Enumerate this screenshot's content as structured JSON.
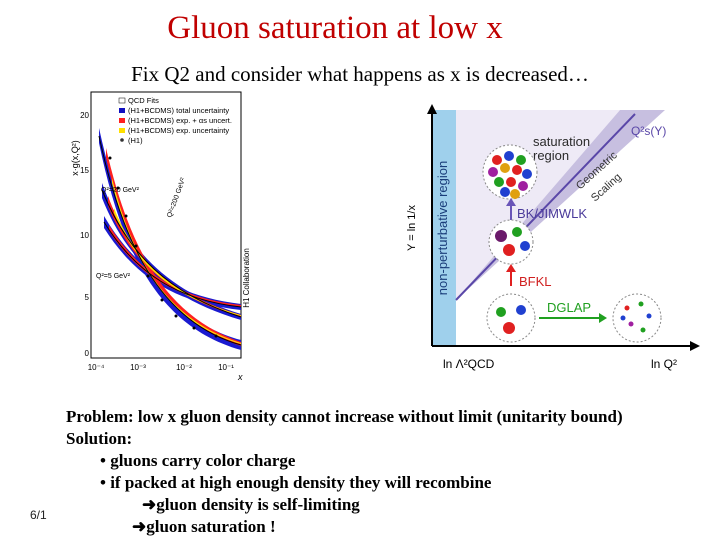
{
  "slide": {
    "title": "Gluon saturation at low x",
    "subtitle": "Fix Q2 and consider what happens as x is decreased…",
    "number": "6/1"
  },
  "left_plot": {
    "ylabel": "x·g(x,Q²)",
    "xlabel": "x",
    "legend": [
      "QCD Fits",
      "(H1+BCDMS) total uncertainty",
      "(H1+BCDMS) exp. + αs uncert.",
      "(H1+BCDMS) exp. uncertainty",
      "(H1)"
    ],
    "legend_colors": [
      "#ffffff",
      "#1010c0",
      "#ff2020",
      "#ffe000",
      "#333333"
    ],
    "q2_labels": [
      "Q²=20 GeV²",
      "Q²=200 GeV²",
      "Q²=5 GeV²"
    ],
    "y_ticks": [
      "20",
      "15",
      "10",
      "5",
      "0"
    ],
    "x_ticks": [
      "10⁻⁴",
      "10⁻³",
      "10⁻²",
      "10⁻¹"
    ],
    "collab": "H1 Collaboration"
  },
  "right_diagram": {
    "y_axis": "Y = ln 1/x",
    "x_axis_left": "ln Λ²QCD",
    "x_axis_right": "ln Q²",
    "region_np": "non-perturbative region",
    "region_sat_1": "saturation",
    "region_sat_2": "region",
    "qs_label": "Q²s(Y)",
    "geo_1": "Geometric",
    "geo_2": "Scaling",
    "bk": "BK/JIMWLK",
    "bfkl": "BFKL",
    "dglap": "DGLAP"
  },
  "footer": {
    "problem": "Problem: low x gluon density cannot increase without limit (unitarity bound)",
    "solution": "Solution:",
    "bullet1": "• gluons carry color charge",
    "bullet2": "• if packed at high enough density they will recombine",
    "arrow1": "gluon density is self-limiting",
    "arrow2": "gluon saturation !"
  }
}
